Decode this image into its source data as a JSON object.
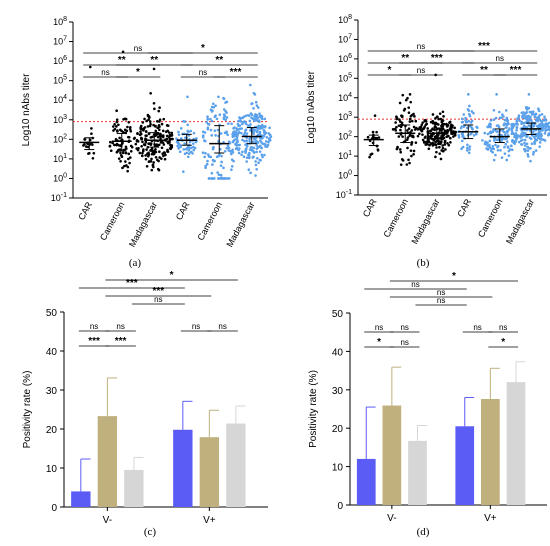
{
  "chart_data": [
    {
      "panel": "(a)",
      "type": "scatter",
      "ylabel": "Log10 nAbs titer",
      "yscale": "log",
      "ylim": [
        0.1,
        100000000
      ],
      "yticks": [
        "10-1",
        "100",
        "101",
        "102",
        "103",
        "104",
        "105",
        "106",
        "107",
        "108"
      ],
      "categories": [
        "CAR",
        "Cameroon",
        "Madagascar",
        "CAR",
        "Cameroon",
        "Madagascar"
      ],
      "group_colors": [
        "#000000",
        "#000000",
        "#000000",
        "#5aa0ea",
        "#5aa0ea",
        "#5aa0ea"
      ],
      "medians": [
        70,
        80,
        90,
        90,
        60,
        140
      ],
      "q1": [
        30,
        25,
        40,
        50,
        20,
        60
      ],
      "q3": [
        120,
        200,
        220,
        180,
        500,
        400
      ],
      "n_points": [
        20,
        80,
        200,
        60,
        130,
        240
      ],
      "max_points": [
        500000,
        3000000,
        400000,
        15000,
        15000,
        60000
      ],
      "threshold": 800,
      "comparisons": [
        {
          "from": 0,
          "to": 1,
          "label": "ns"
        },
        {
          "from": 1,
          "to": 2,
          "label": "*"
        },
        {
          "from": 0,
          "to": 2,
          "label": "**"
        },
        {
          "from": 1,
          "to": 3,
          "label": "**"
        },
        {
          "from": 0,
          "to": 3,
          "label": "ns"
        },
        {
          "from": 2,
          "to": 5,
          "label": "*"
        },
        {
          "from": 3,
          "to": 4,
          "label": "ns"
        },
        {
          "from": 4,
          "to": 5,
          "label": "***"
        },
        {
          "from": 3,
          "to": 5,
          "label": "**"
        }
      ]
    },
    {
      "panel": "(b)",
      "type": "scatter",
      "ylabel": "Log10 nAbs titer",
      "yscale": "log",
      "ylim": [
        0.1,
        100000000
      ],
      "yticks": [
        "10-1",
        "100",
        "101",
        "102",
        "103",
        "104",
        "105",
        "106",
        "107",
        "108"
      ],
      "categories": [
        "CAR",
        "Cameroon",
        "Madagascar",
        "CAR",
        "Cameroon",
        "Madagascar"
      ],
      "group_colors": [
        "#000000",
        "#000000",
        "#000000",
        "#5aa0ea",
        "#5aa0ea",
        "#5aa0ea"
      ],
      "medians": [
        70,
        150,
        150,
        180,
        100,
        250
      ],
      "q1": [
        35,
        50,
        80,
        80,
        50,
        130
      ],
      "q3": [
        120,
        400,
        280,
        400,
        250,
        500
      ],
      "n_points": [
        20,
        80,
        200,
        60,
        130,
        240
      ],
      "max_points": [
        1200,
        15000,
        150000,
        15000,
        15000,
        15000
      ],
      "threshold": 800,
      "comparisons": [
        {
          "from": 0,
          "to": 1,
          "label": "*"
        },
        {
          "from": 1,
          "to": 2,
          "label": "ns"
        },
        {
          "from": 0,
          "to": 2,
          "label": "**"
        },
        {
          "from": 1,
          "to": 3,
          "label": "***"
        },
        {
          "from": 0,
          "to": 3,
          "label": "ns"
        },
        {
          "from": 2,
          "to": 5,
          "label": "***"
        },
        {
          "from": 3,
          "to": 4,
          "label": "**"
        },
        {
          "from": 4,
          "to": 5,
          "label": "***"
        },
        {
          "from": 3,
          "to": 5,
          "label": "ns"
        }
      ]
    },
    {
      "panel": "(c)",
      "type": "bar",
      "ylabel": "Positivity rate (%)",
      "ylim": [
        0,
        50
      ],
      "yticks": [
        0,
        10,
        20,
        30,
        40,
        50
      ],
      "categories": [
        "V-",
        "V+"
      ],
      "series_colors": [
        "#5b5bf5",
        "#bfb07e",
        "#d6d6d6"
      ],
      "series": [
        {
          "values": [
            4,
            19.8
          ],
          "errors": [
            8.3,
            7.3
          ]
        },
        {
          "values": [
            23.3,
            17.9
          ],
          "errors": [
            9.8,
            6.9
          ]
        },
        {
          "values": [
            9.5,
            21.4
          ],
          "errors": [
            3.2,
            4.5
          ]
        }
      ],
      "comparisons": [
        {
          "g1": 0,
          "s1": 0,
          "g2": 0,
          "s2": 1,
          "label": "ns",
          "level": 0
        },
        {
          "g1": 0,
          "s1": 1,
          "g2": 0,
          "s2": 2,
          "label": "ns",
          "level": 0
        },
        {
          "g1": 0,
          "s1": 0,
          "g2": 0,
          "s2": 1,
          "label": "***",
          "level": -1
        },
        {
          "g1": 0,
          "s1": 1,
          "g2": 0,
          "s2": 2,
          "label": "***",
          "level": -1
        },
        {
          "g1": 1,
          "s1": 0,
          "g2": 1,
          "s2": 1,
          "label": "ns",
          "level": 0
        },
        {
          "g1": 1,
          "s1": 1,
          "g2": 1,
          "s2": 2,
          "label": "ns",
          "level": 0
        },
        {
          "g1": 0,
          "s1": 2,
          "g2": 1,
          "s2": 0,
          "label": "ns",
          "level": 1
        },
        {
          "g1": 0,
          "s1": 1,
          "g2": 1,
          "s2": 1,
          "label": "***",
          "level": 2
        },
        {
          "g1": 0,
          "s1": 0,
          "g2": 1,
          "s2": 0,
          "label": "***",
          "level": 3
        },
        {
          "g1": 0,
          "s1": 1,
          "g2": 1,
          "s2": 2,
          "label": "*",
          "level": 4
        }
      ]
    },
    {
      "panel": "(d)",
      "type": "bar",
      "ylabel": "Positivity rate (%)",
      "ylim": [
        0,
        50
      ],
      "yticks": [
        0,
        10,
        20,
        30,
        40,
        50
      ],
      "categories": [
        "V-",
        "V+"
      ],
      "series_colors": [
        "#5b5bf5",
        "#bfb07e",
        "#d6d6d6"
      ],
      "series": [
        {
          "values": [
            12,
            20.5
          ],
          "errors": [
            13.5,
            7.5
          ]
        },
        {
          "values": [
            25.9,
            27.6
          ],
          "errors": [
            10,
            8
          ]
        },
        {
          "values": [
            16.7,
            32
          ],
          "errors": [
            4,
            5.3
          ]
        }
      ],
      "comparisons": [
        {
          "g1": 0,
          "s1": 0,
          "g2": 0,
          "s2": 1,
          "label": "ns",
          "level": 0
        },
        {
          "g1": 0,
          "s1": 1,
          "g2": 0,
          "s2": 2,
          "label": "ns",
          "level": 0
        },
        {
          "g1": 0,
          "s1": 0,
          "g2": 0,
          "s2": 1,
          "label": "*",
          "level": -1
        },
        {
          "g1": 0,
          "s1": 1,
          "g2": 0,
          "s2": 2,
          "label": "ns",
          "level": -1
        },
        {
          "g1": 1,
          "s1": 0,
          "g2": 1,
          "s2": 1,
          "label": "ns",
          "level": 0
        },
        {
          "g1": 1,
          "s1": 1,
          "g2": 1,
          "s2": 2,
          "label": "ns",
          "level": 0
        },
        {
          "g1": 1,
          "s1": 1,
          "g2": 1,
          "s2": 2,
          "label": "*",
          "level": -1
        },
        {
          "g1": 0,
          "s1": 2,
          "g2": 1,
          "s2": 0,
          "label": "ns",
          "level": 1
        },
        {
          "g1": 0,
          "s1": 1,
          "g2": 1,
          "s2": 1,
          "label": "ns",
          "level": 2
        },
        {
          "g1": 0,
          "s1": 0,
          "g2": 1,
          "s2": 0,
          "label": "ns",
          "level": 3
        },
        {
          "g1": 0,
          "s1": 1,
          "g2": 1,
          "s2": 2,
          "label": "*",
          "level": 4
        }
      ]
    }
  ]
}
